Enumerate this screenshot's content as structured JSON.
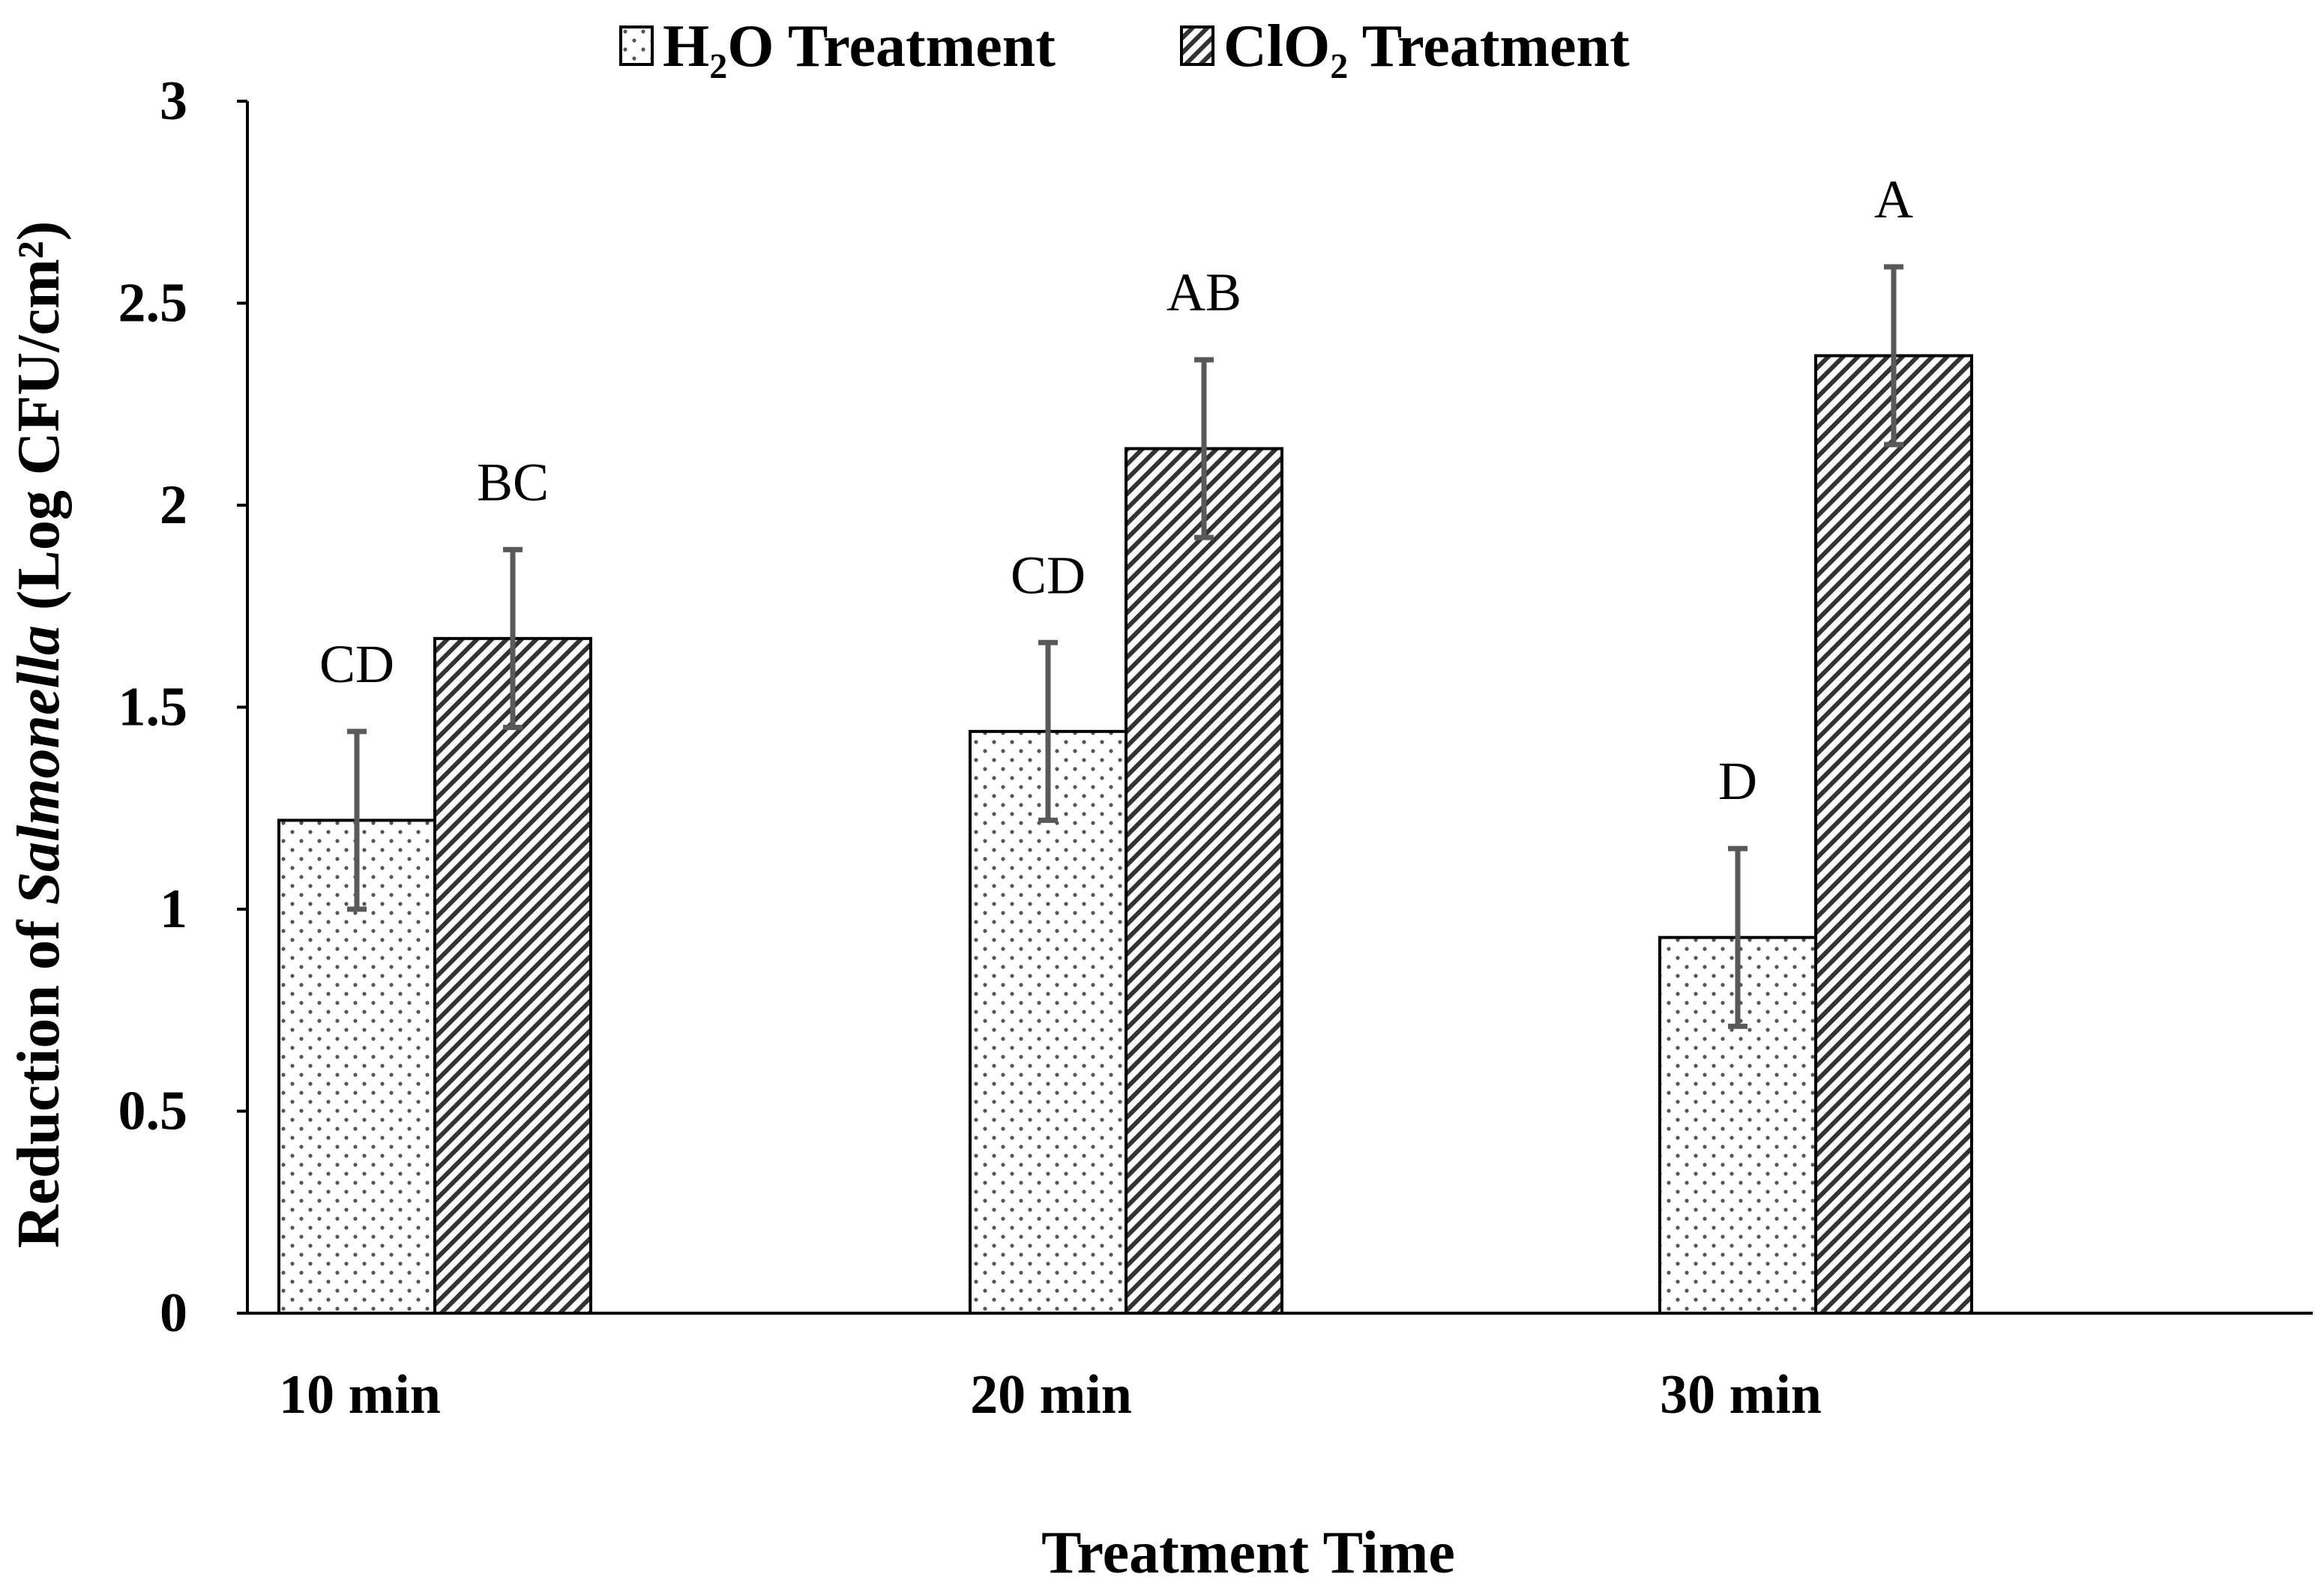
{
  "chart_data": {
    "type": "bar",
    "title": "",
    "xlabel": "Treatment Time",
    "ylabel_prefix": "Reduction of ",
    "ylabel_italic": "Salmonella",
    "ylabel_suffix": " (Log CFU/cm²)",
    "ylim": [
      0,
      3
    ],
    "yticks": [
      0,
      0.5,
      1,
      1.5,
      2,
      2.5,
      3
    ],
    "ytick_labels": [
      "0",
      "0.5",
      "1",
      "1.5",
      "2",
      "2.5",
      "3"
    ],
    "categories": [
      "10 min",
      "20 min",
      "30 min"
    ],
    "legend_position": "top-center",
    "series": [
      {
        "name": "H₂O Treatment",
        "pattern": "dots",
        "values": [
          1.22,
          1.44,
          0.93
        ],
        "errors": [
          0.22,
          0.22,
          0.22
        ],
        "letters": [
          "CD",
          "CD",
          "D"
        ]
      },
      {
        "name": "ClO₂ Treatment",
        "pattern": "hatch",
        "values": [
          1.67,
          2.14,
          2.37
        ],
        "errors": [
          0.22,
          0.22,
          0.22
        ],
        "letters": [
          "BC",
          "AB",
          "A"
        ]
      }
    ],
    "colors": {
      "axis": "#000000",
      "bar_stroke": "#000000",
      "error_bar": "#595959",
      "dot": "#555555",
      "hatch": "#333333",
      "bar_fill": "#ffffff"
    }
  }
}
